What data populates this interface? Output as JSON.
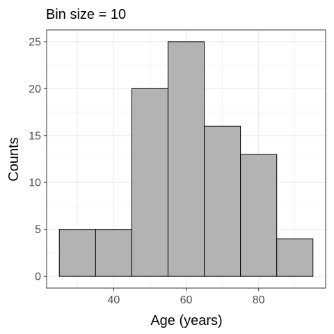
{
  "chart_data": {
    "type": "bar",
    "title": "Bin size = 10",
    "xlabel": "Age (years)",
    "ylabel": "Counts",
    "bins": [
      {
        "x0": 25,
        "x1": 35,
        "count": 5
      },
      {
        "x0": 35,
        "x1": 45,
        "count": 5
      },
      {
        "x0": 45,
        "x1": 55,
        "count": 20
      },
      {
        "x0": 55,
        "x1": 65,
        "count": 25
      },
      {
        "x0": 65,
        "x1": 75,
        "count": 16
      },
      {
        "x0": 75,
        "x1": 85,
        "count": 13
      },
      {
        "x0": 85,
        "x1": 95,
        "count": 4
      }
    ],
    "xlim": [
      21.5,
      98.5
    ],
    "ylim": [
      -1.25,
      26.25
    ],
    "x_ticks": [
      40,
      60,
      80
    ],
    "y_ticks": [
      0,
      5,
      10,
      15,
      20,
      25
    ],
    "grid": true,
    "colors": {
      "bar_fill": "#b3b3b3",
      "bar_stroke": "#000000",
      "grid": "#ebebeb",
      "panel_border": "#333333"
    }
  }
}
